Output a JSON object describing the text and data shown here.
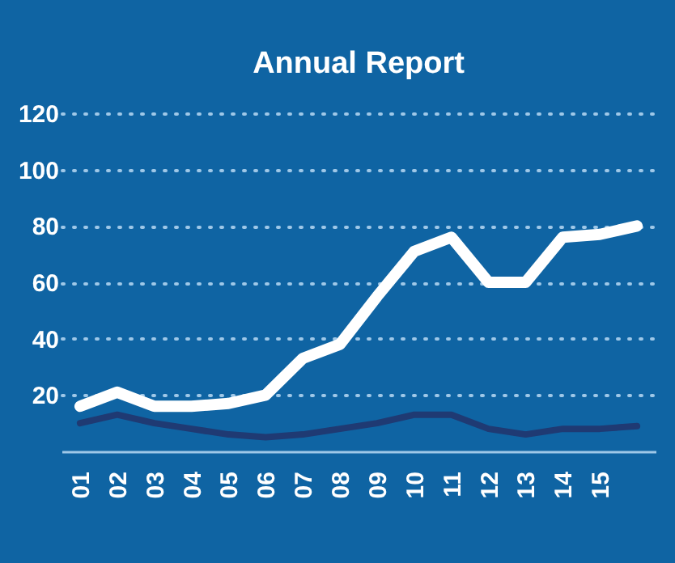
{
  "chart_data": {
    "type": "line",
    "title": "Annual Report",
    "categories": [
      "01",
      "02",
      "03",
      "04",
      "05",
      "06",
      "07",
      "08",
      "09",
      "10",
      "11",
      "12",
      "13",
      "14",
      "15",
      null
    ],
    "series": [
      {
        "color": "#ffffff",
        "values": [
          16,
          21,
          16,
          16,
          17,
          20,
          33,
          38,
          55,
          71,
          76,
          60,
          60,
          76,
          77,
          80
        ]
      },
      {
        "color": "#1f3a73",
        "values": [
          10,
          13,
          10,
          8,
          6,
          5,
          6,
          8,
          10,
          13,
          13,
          8,
          6,
          8,
          8,
          9
        ]
      }
    ],
    "ylim": [
      0,
      120
    ],
    "yticks": [
      20,
      40,
      60,
      80,
      100,
      120
    ],
    "grid": "y",
    "legend": false,
    "marker": "none",
    "line_style": "solid"
  }
}
